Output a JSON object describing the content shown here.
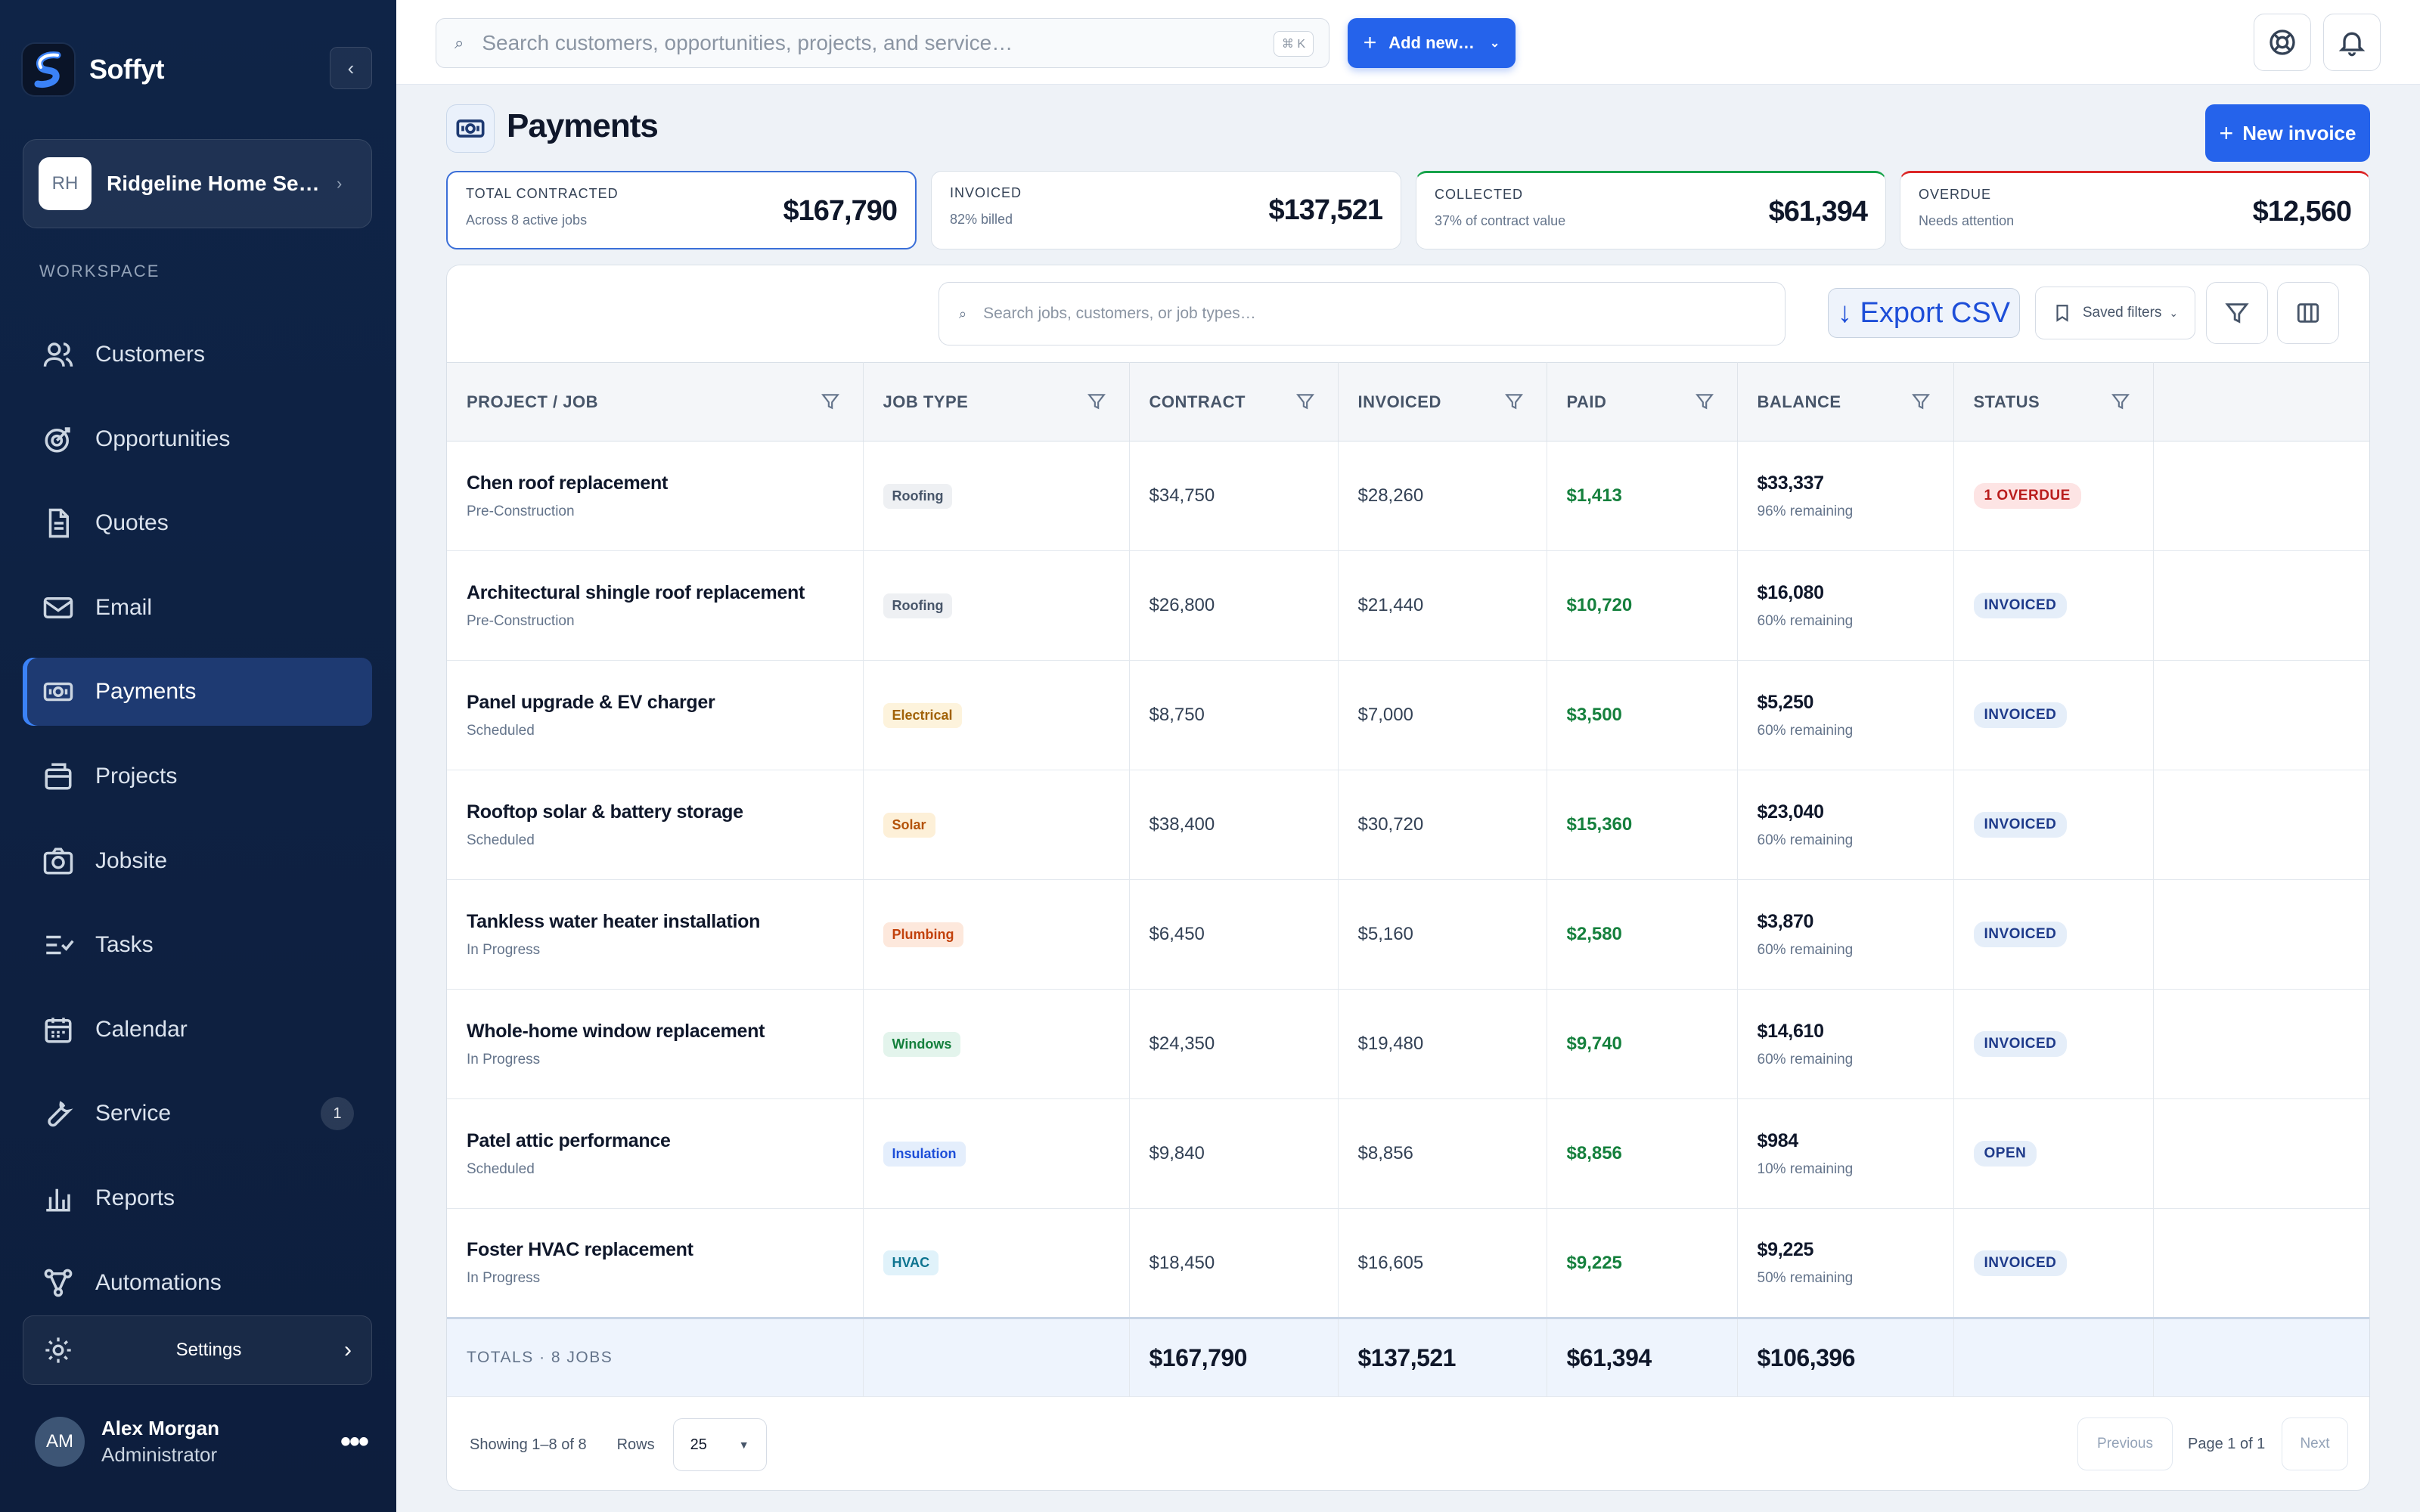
{
  "app": {
    "name": "Soffyt",
    "collapse_icon": "chevron-left-icon"
  },
  "workspace": {
    "initials": "RH",
    "name": "Ridgeline Home Services",
    "section_label": "WORKSPACE"
  },
  "nav": [
    {
      "label": "Customers",
      "icon": "users-icon"
    },
    {
      "label": "Opportunities",
      "icon": "target-icon"
    },
    {
      "label": "Quotes",
      "icon": "document-icon"
    },
    {
      "label": "Email",
      "icon": "mail-icon"
    },
    {
      "label": "Payments",
      "icon": "banknote-icon",
      "active": true
    },
    {
      "label": "Projects",
      "icon": "briefcase-icon"
    },
    {
      "label": "Jobsite",
      "icon": "camera-icon"
    },
    {
      "label": "Tasks",
      "icon": "checklist-icon"
    },
    {
      "label": "Calendar",
      "icon": "calendar-icon"
    },
    {
      "label": "Service",
      "icon": "wrench-icon",
      "badge": "1"
    },
    {
      "label": "Reports",
      "icon": "bar-chart-icon"
    },
    {
      "label": "Automations",
      "icon": "workflow-icon"
    }
  ],
  "settings": {
    "label": "Settings"
  },
  "user": {
    "initials": "AM",
    "name": "Alex Morgan",
    "role": "Administrator",
    "menu": "•••"
  },
  "topbar": {
    "search_placeholder": "Search customers, opportunities, projects, and service…",
    "shortcut": "⌘ K",
    "add_new": "Add new…"
  },
  "page": {
    "title": "Payments",
    "new_invoice": "New invoice"
  },
  "stats": [
    {
      "label": "TOTAL CONTRACTED",
      "sub": "Across 8 active jobs",
      "value": "$167,790"
    },
    {
      "label": "INVOICED",
      "sub": "82% billed",
      "value": "$137,521"
    },
    {
      "label": "COLLECTED",
      "sub": "37% of contract value",
      "value": "$61,394"
    },
    {
      "label": "OVERDUE",
      "sub": "Needs attention",
      "value": "$12,560"
    }
  ],
  "toolbar": {
    "search_placeholder": "Search jobs, customers, or job types…",
    "export": "↓ Export CSV",
    "saved_filters": "Saved filters"
  },
  "table": {
    "headers": [
      "PROJECT / JOB",
      "JOB TYPE",
      "CONTRACT",
      "INVOICED",
      "PAID",
      "BALANCE",
      "STATUS"
    ],
    "rows": [
      {
        "name": "Chen roof replacement",
        "phase": "Pre-Construction",
        "type": "Roofing",
        "contract": "$34,750",
        "invoiced": "$28,260",
        "paid": "$1,413",
        "balance": "$33,337",
        "remaining": "96% remaining",
        "status": "1 OVERDUE"
      },
      {
        "name": "Architectural shingle roof replacement",
        "phase": "Pre-Construction",
        "type": "Roofing",
        "contract": "$26,800",
        "invoiced": "$21,440",
        "paid": "$10,720",
        "balance": "$16,080",
        "remaining": "60% remaining",
        "status": "INVOICED"
      },
      {
        "name": "Panel upgrade & EV charger",
        "phase": "Scheduled",
        "type": "Electrical",
        "contract": "$8,750",
        "invoiced": "$7,000",
        "paid": "$3,500",
        "balance": "$5,250",
        "remaining": "60% remaining",
        "status": "INVOICED"
      },
      {
        "name": "Rooftop solar & battery storage",
        "phase": "Scheduled",
        "type": "Solar",
        "contract": "$38,400",
        "invoiced": "$30,720",
        "paid": "$15,360",
        "balance": "$23,040",
        "remaining": "60% remaining",
        "status": "INVOICED"
      },
      {
        "name": "Tankless water heater installation",
        "phase": "In Progress",
        "type": "Plumbing",
        "contract": "$6,450",
        "invoiced": "$5,160",
        "paid": "$2,580",
        "balance": "$3,870",
        "remaining": "60% remaining",
        "status": "INVOICED"
      },
      {
        "name": "Whole-home window replacement",
        "phase": "In Progress",
        "type": "Windows",
        "contract": "$24,350",
        "invoiced": "$19,480",
        "paid": "$9,740",
        "balance": "$14,610",
        "remaining": "60% remaining",
        "status": "INVOICED"
      },
      {
        "name": "Patel attic performance",
        "phase": "Scheduled",
        "type": "Insulation",
        "contract": "$9,840",
        "invoiced": "$8,856",
        "paid": "$8,856",
        "balance": "$984",
        "remaining": "10% remaining",
        "status": "OPEN"
      },
      {
        "name": "Foster HVAC replacement",
        "phase": "In Progress",
        "type": "HVAC",
        "contract": "$18,450",
        "invoiced": "$16,605",
        "paid": "$9,225",
        "balance": "$9,225",
        "remaining": "50% remaining",
        "status": "INVOICED"
      }
    ],
    "totals": {
      "label": "TOTALS · 8 JOBS",
      "contract": "$167,790",
      "invoiced": "$137,521",
      "paid": "$61,394",
      "balance": "$106,396"
    }
  },
  "pagination": {
    "showing": "Showing 1–8 of 8",
    "rows_label": "Rows",
    "rows_value": "25",
    "previous": "Previous",
    "page": "Page 1 of 1",
    "next": "Next"
  },
  "colors": {
    "accent": "#2563eb",
    "sidebar": "#0f2447",
    "paid": "#15803d",
    "overdue": "#dc2626",
    "collected": "#16a34a"
  }
}
